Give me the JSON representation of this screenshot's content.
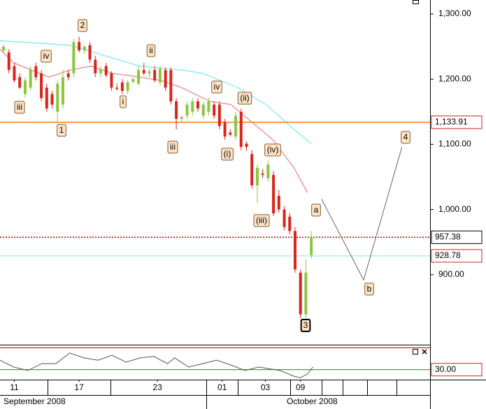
{
  "chart_data": {
    "type": "candlestick",
    "categories": [
      null,
      null,
      null,
      null,
      null,
      null,
      null,
      null,
      null,
      null,
      null,
      null,
      null,
      null,
      null,
      null,
      null,
      null,
      null,
      null,
      null,
      null,
      null,
      null,
      null,
      null,
      null,
      null,
      null,
      null,
      null,
      null,
      null,
      null,
      null,
      null,
      null,
      null,
      null,
      null,
      null,
      null,
      null,
      null,
      null,
      null,
      null,
      null,
      null,
      null,
      null,
      null,
      null,
      null,
      null,
      null,
      null,
      null
    ],
    "candles": {
      "up_color": "#8cc63e",
      "down_color": "#d8261c",
      "open": [
        1244,
        1241,
        1220,
        1203,
        1177,
        1187,
        1220,
        1209,
        1187,
        1177,
        1150,
        1161,
        1209,
        1209,
        1257,
        1244,
        1252,
        1230,
        1209,
        1220,
        1209,
        1187,
        1195,
        1182,
        1196,
        1193,
        1214,
        1209,
        1214,
        1195,
        1214,
        1214,
        1166,
        1139,
        1144,
        1150,
        1166,
        1144,
        1150,
        1161,
        1161,
        1134,
        1118,
        1112,
        1150,
        1101,
        1085,
        1037,
        1055,
        1048,
        1053,
        1021,
        1000,
        989,
        967,
        903,
        839,
        930
      ],
      "high": [
        1252,
        1246,
        1225,
        1209,
        1203,
        1220,
        1225,
        1214,
        1193,
        1182,
        1198,
        1214,
        1214,
        1262,
        1265,
        1252,
        1257,
        1236,
        1220,
        1225,
        1212,
        1193,
        1200,
        1198,
        1203,
        1220,
        1225,
        1216,
        1220,
        1220,
        1218,
        1218,
        1171,
        1144,
        1166,
        1171,
        1171,
        1166,
        1171,
        1166,
        1166,
        1139,
        1123,
        1150,
        1155,
        1104,
        1091,
        1069,
        1062,
        1075,
        1059,
        1030,
        1005,
        995,
        973,
        908,
        924,
        967
      ],
      "low": [
        1241,
        1209,
        1195,
        1185,
        1171,
        1182,
        1198,
        1166,
        1150,
        1155,
        1134,
        1155,
        1198,
        1203,
        1241,
        1239,
        1225,
        1203,
        1203,
        1203,
        1182,
        1182,
        1177,
        1177,
        1193,
        1190,
        1206,
        1203,
        1195,
        1190,
        1182,
        1161,
        1123,
        1134,
        1139,
        1144,
        1150,
        1139,
        1144,
        1139,
        1123,
        1107,
        1112,
        1107,
        1091,
        1090,
        1032,
        1010,
        1048,
        1042,
        990,
        995,
        968,
        962,
        903,
        833,
        833,
        925
      ],
      "close": [
        1250,
        1214,
        1198,
        1187,
        1198,
        1214,
        1203,
        1171,
        1155,
        1161,
        1193,
        1203,
        1203,
        1257,
        1244,
        1250,
        1230,
        1209,
        1214,
        1206,
        1187,
        1185,
        1182,
        1195,
        1200,
        1214,
        1209,
        1212,
        1198,
        1216,
        1187,
        1166,
        1139,
        1142,
        1161,
        1166,
        1155,
        1161,
        1166,
        1144,
        1128,
        1112,
        1115,
        1144,
        1096,
        1096,
        1037,
        1064,
        1053,
        1069,
        994,
        1000,
        973,
        967,
        908,
        839,
        903,
        957
      ]
    },
    "overlays": [
      {
        "color": "#86e8f0",
        "x": [
          -0.65,
          12.3,
          18.8,
          25.3,
          33,
          36.9,
          43.4,
          48.6,
          53.8,
          57
        ],
        "values": [
          1259,
          1252,
          1236,
          1220,
          1214,
          1209,
          1187,
          1161,
          1123,
          1101
        ]
      },
      {
        "color": "#ee8a8a",
        "x": [
          -0.65,
          1.9,
          8.4,
          12.3,
          16.2,
          20.1,
          25.3,
          29.1,
          33,
          38.2,
          42.1,
          46,
          49.9,
          53.8,
          56.3
        ],
        "values": [
          1246,
          1225,
          1203,
          1214,
          1220,
          1209,
          1203,
          1198,
          1187,
          1166,
          1161,
          1134,
          1107,
          1064,
          1026
        ]
      }
    ],
    "projection": {
      "color": "#666666",
      "x": [
        58.9,
        66.7,
        73.8
      ],
      "values": [
        1016,
        892,
        1096
      ]
    },
    "levels": [
      {
        "value": 1133.91,
        "label": "1,133.91",
        "color": "#f07d1c",
        "label_color": "#d02020",
        "style": "solid"
      },
      {
        "value": 957.38,
        "label": "957.38",
        "color": "#c00000",
        "label_color": "#000000",
        "style": "dotted"
      },
      {
        "value": 928.78,
        "label": "928.78",
        "color": "#a8eef8",
        "label_color": "#d02020",
        "style": "solid"
      }
    ],
    "xlim": [
      -0.65,
      79
    ],
    "xticks": [
      {
        "value": 2,
        "label": "11"
      },
      {
        "value": 14,
        "label": "17"
      },
      {
        "value": 28.5,
        "label": "23"
      },
      {
        "value": 40.5,
        "label": "01"
      },
      {
        "value": 48.5,
        "label": "03"
      },
      {
        "value": 55,
        "label": "09"
      }
    ],
    "ylim": [
      792.5,
      1321.5
    ],
    "yticks": [
      {
        "value": 900,
        "label": "900.00"
      },
      {
        "value": 1000,
        "label": "1,000.00"
      },
      {
        "value": 1100,
        "label": "1,100.00"
      },
      {
        "value": 1200,
        "label": "1,200.00"
      },
      {
        "value": 1300,
        "label": "1,300.00"
      }
    ],
    "annotations": [
      "iv",
      "iii",
      "1",
      "2",
      "ii",
      "i",
      "iv",
      "(ii)",
      "iii",
      "(i)",
      "(iv)",
      "(iii)",
      "a",
      "b",
      "4",
      "3"
    ],
    "months": [
      "September 2008",
      "October 2008"
    ],
    "indicator": {
      "ylim": [
        0,
        100
      ],
      "color": "#555555",
      "x": [
        -0.65,
        1.9,
        4.5,
        7.1,
        9.7,
        12.3,
        14.9,
        17.5,
        20.1,
        22.7,
        25.3,
        27.8,
        30.4,
        31.7,
        34.3,
        36.9,
        39.5,
        42.1,
        44.7,
        47.3,
        51.2,
        53.8,
        55,
        56.3,
        57.3
      ],
      "values": [
        63,
        39,
        27,
        51,
        51,
        88,
        71,
        63,
        80,
        56,
        71,
        76,
        51,
        71,
        39,
        51,
        63,
        46,
        27,
        39,
        27,
        7,
        2,
        15,
        39
      ],
      "level": {
        "value": 30,
        "label": "30.00",
        "color": "#2a9a2a",
        "label_color": "#d02020"
      }
    }
  }
}
